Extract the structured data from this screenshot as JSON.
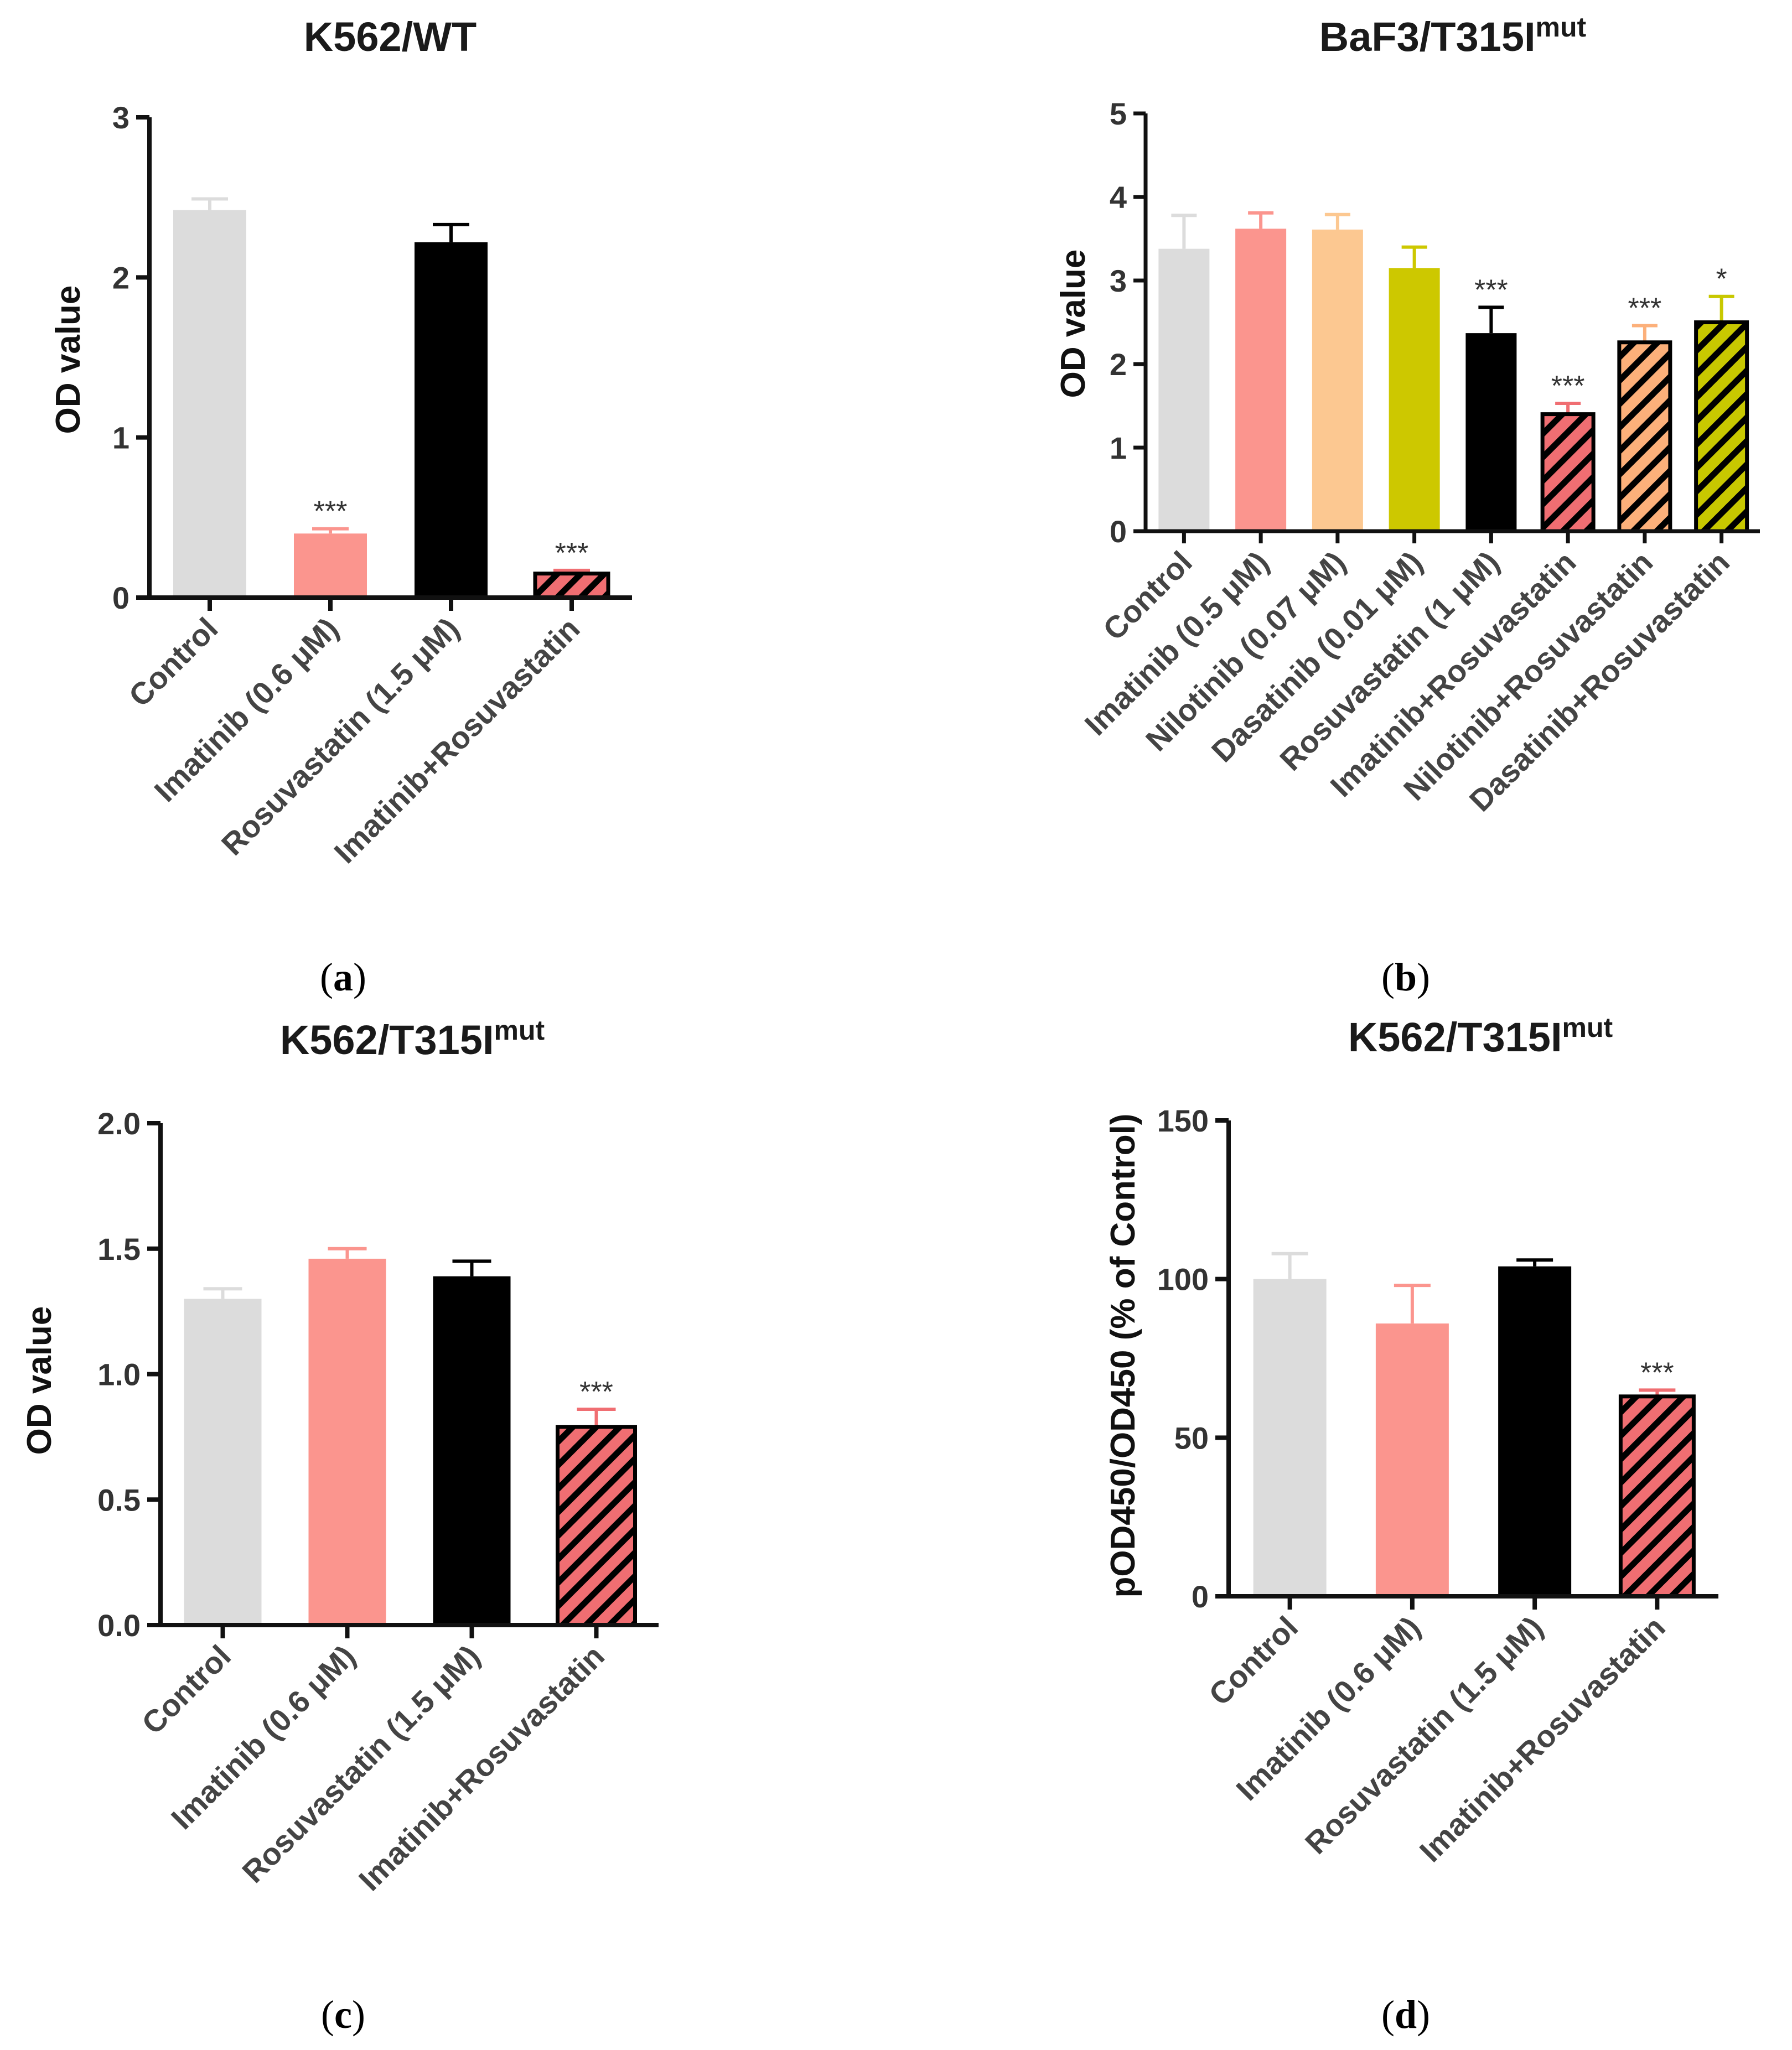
{
  "chart_data": [
    {
      "type": "bar",
      "panel": "a",
      "title": "K562/WT",
      "title_sup": "",
      "ylabel": "OD value",
      "ylim": [
        0,
        3
      ],
      "yticks": [
        "0",
        "1",
        "2",
        "3"
      ],
      "categories": [
        "Control",
        "Imatinib (0.6 μM)",
        "Rosuvastatin (1.5 μM)",
        "Imatinib+Rosuvastatin"
      ],
      "values": [
        2.42,
        0.4,
        2.22,
        0.15
      ],
      "errors": [
        0.07,
        0.03,
        0.11,
        0.02
      ],
      "significance": [
        "",
        "***",
        "",
        "***"
      ],
      "colors": [
        "#dcdcdc",
        "#fb958e",
        "#000000",
        "#f06e72"
      ],
      "hatched": [
        false,
        false,
        false,
        true
      ]
    },
    {
      "type": "bar",
      "panel": "b",
      "title": "BaF3/T315I",
      "title_sup": "mut",
      "ylabel": "OD value",
      "ylim": [
        0,
        5
      ],
      "yticks": [
        "0",
        "1",
        "2",
        "3",
        "4",
        "5"
      ],
      "categories": [
        "Control",
        "Imatinib (0.5 μM)",
        "Nilotinib (0.07 μM)",
        "Dasatinib (0.01 μM)",
        "Rosuvastatin (1 μM)",
        "Imatinib+Rosuvastatin",
        "Nilotinib+Rosuvastatin",
        "Dasatinib+Rosuvastatin"
      ],
      "values": [
        3.38,
        3.62,
        3.61,
        3.15,
        2.37,
        1.4,
        2.26,
        2.5
      ],
      "errors": [
        0.4,
        0.19,
        0.18,
        0.25,
        0.31,
        0.13,
        0.2,
        0.31
      ],
      "significance": [
        "",
        "",
        "",
        "",
        "***",
        "***",
        "***",
        "*"
      ],
      "colors": [
        "#dcdcdc",
        "#fb958e",
        "#fcc891",
        "#cdc800",
        "#000000",
        "#f06e72",
        "#fcb07a",
        "#c8c800"
      ],
      "hatched": [
        false,
        false,
        false,
        false,
        false,
        true,
        true,
        true
      ]
    },
    {
      "type": "bar",
      "panel": "c",
      "title": "K562/T315I",
      "title_sup": "mut",
      "ylabel": "OD value",
      "ylim": [
        0,
        2
      ],
      "yticks": [
        "0.0",
        "0.5",
        "1.0",
        "1.5",
        "2.0"
      ],
      "categories": [
        "Control",
        "Imatinib (0.6 μM)",
        "Rosuvastatin (1.5 μM)",
        "Imatinib+Rosuvastatin"
      ],
      "values": [
        1.3,
        1.46,
        1.39,
        0.79
      ],
      "errors": [
        0.04,
        0.04,
        0.06,
        0.07
      ],
      "significance": [
        "",
        "",
        "",
        "***"
      ],
      "colors": [
        "#dcdcdc",
        "#fb958e",
        "#000000",
        "#f06e72"
      ],
      "hatched": [
        false,
        false,
        false,
        true
      ]
    },
    {
      "type": "bar",
      "panel": "d",
      "title": "K562/T315I",
      "title_sup": "mut",
      "ylabel": "pOD450/OD450 (% of Control)",
      "ylim": [
        0,
        150
      ],
      "yticks": [
        "0",
        "50",
        "100",
        "150"
      ],
      "categories": [
        "Control",
        "Imatinib (0.6 μM)",
        "Rosuvastatin (1.5 μM)",
        "Imatinib+Rosuvastatin"
      ],
      "values": [
        100,
        86,
        104,
        63
      ],
      "errors": [
        8,
        12,
        2,
        2
      ],
      "significance": [
        "",
        "",
        "",
        "***"
      ],
      "colors": [
        "#dcdcdc",
        "#fb958e",
        "#000000",
        "#f06e72"
      ],
      "hatched": [
        false,
        false,
        false,
        true
      ]
    }
  ]
}
